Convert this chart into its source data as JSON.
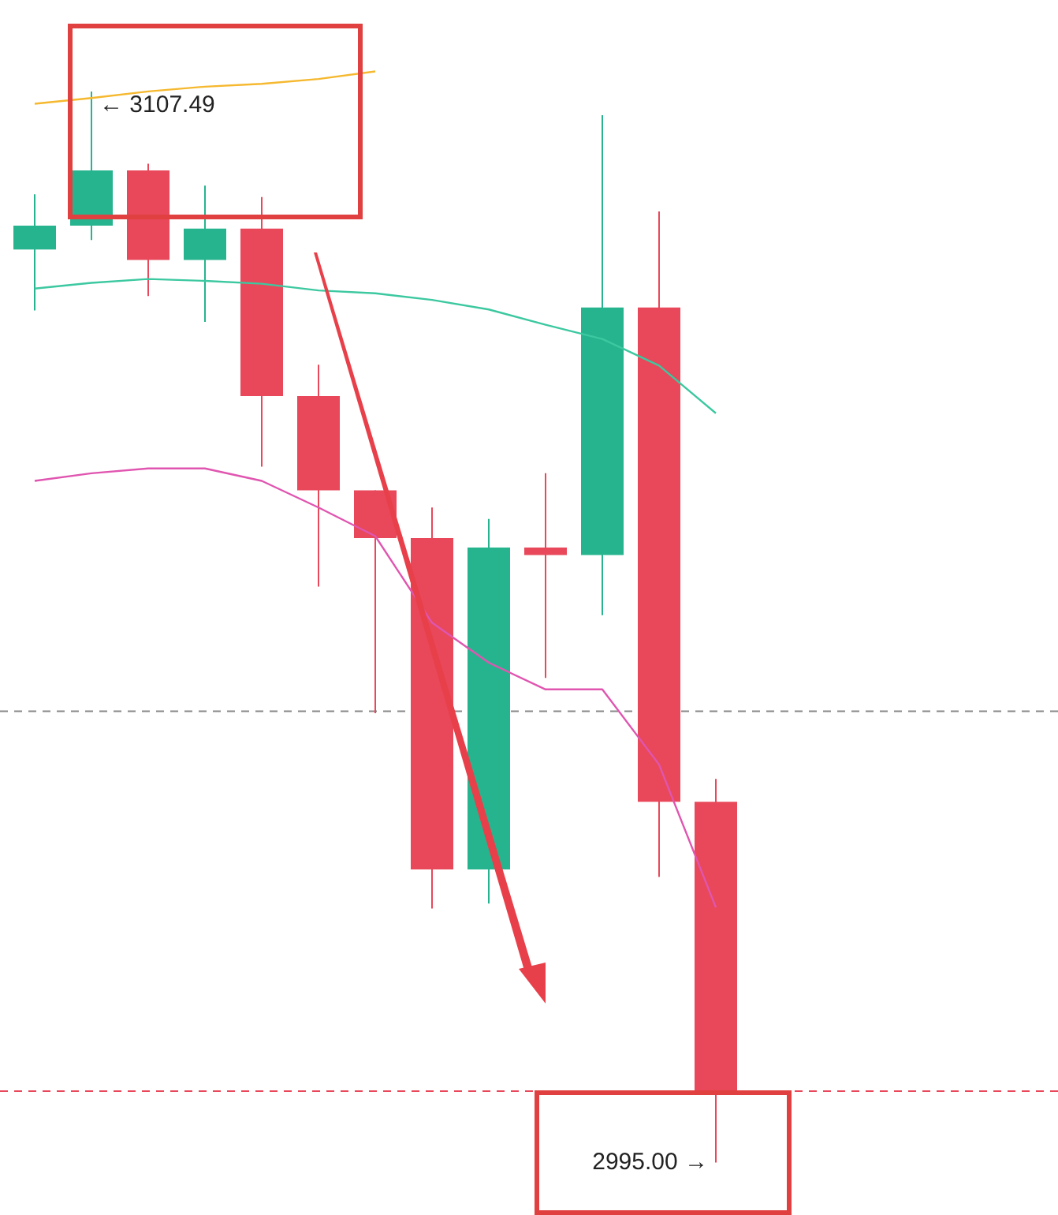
{
  "chart_data": {
    "type": "candlestick",
    "categories": [
      null,
      null,
      null,
      null,
      null,
      null,
      null,
      null,
      null,
      null,
      null,
      null,
      null
    ],
    "ohlc": [
      [
        3090.9,
        3096.7,
        3084.5,
        3093.4
      ],
      [
        3093.4,
        3107.49,
        3091.9,
        3099.2
      ],
      [
        3099.2,
        3099.9,
        3086.0,
        3089.8
      ],
      [
        3089.8,
        3097.6,
        3083.3,
        3093.1
      ],
      [
        3093.1,
        3096.4,
        3068.1,
        3075.5
      ],
      [
        3075.5,
        3078.8,
        3055.5,
        3065.6
      ],
      [
        3065.6,
        3065.6,
        3042.2,
        3060.6
      ],
      [
        3060.6,
        3063.8,
        3021.7,
        3025.8
      ],
      [
        3025.8,
        3062.6,
        3022.2,
        3059.6
      ],
      [
        3059.6,
        3067.4,
        3045.9,
        3058.8
      ],
      [
        3058.8,
        3105.0,
        3052.5,
        3084.8
      ],
      [
        3084.8,
        3094.9,
        3025.0,
        3032.9
      ],
      [
        3032.9,
        3035.3,
        2995.0,
        3002.5
      ]
    ],
    "colors": [
      "#26b48e",
      "#26b48e",
      "#e8485a",
      "#26b48e",
      "#e8485a",
      "#e8485a",
      "#e8485a",
      "#e8485a",
      "#26b48e",
      "#e8485a",
      "#26b48e",
      "#e8485a",
      "#e8485a"
    ],
    "series": [
      {
        "type": "line",
        "color": "#f5b82e",
        "values": [
          3106.2,
          3106.8,
          3107.5,
          3108.0,
          3108.3,
          3108.8,
          3109.6,
          null,
          null,
          null,
          null,
          null,
          null
        ]
      },
      {
        "type": "line",
        "color": "#3cc8a0",
        "values": [
          3086.8,
          3087.4,
          3087.8,
          3087.6,
          3087.3,
          3086.6,
          3086.3,
          3085.6,
          3084.6,
          3083.0,
          3081.5,
          3078.7,
          3073.7
        ]
      },
      {
        "type": "line",
        "color": "#e055b0",
        "values": [
          3066.6,
          3067.4,
          3067.9,
          3067.9,
          3066.6,
          3063.8,
          3060.8,
          3051.7,
          3047.5,
          3044.7,
          3044.7,
          3036.8,
          3021.8
        ]
      }
    ],
    "ylim": [
      2989.5,
      3117.1
    ],
    "grid": false,
    "legend": false,
    "marker": "none",
    "line_style": "solid",
    "ref_lines": [
      {
        "axis": "y",
        "value": 3042.4,
        "color": "#888888",
        "line_style": "dashed"
      },
      {
        "axis": "y",
        "value": 3002.5,
        "color": "#e8485a",
        "line_style": "dashed"
      }
    ],
    "annotations": [
      {
        "text": "← 3107.49",
        "y": 3107.49
      },
      "2995.00 →"
    ]
  }
}
